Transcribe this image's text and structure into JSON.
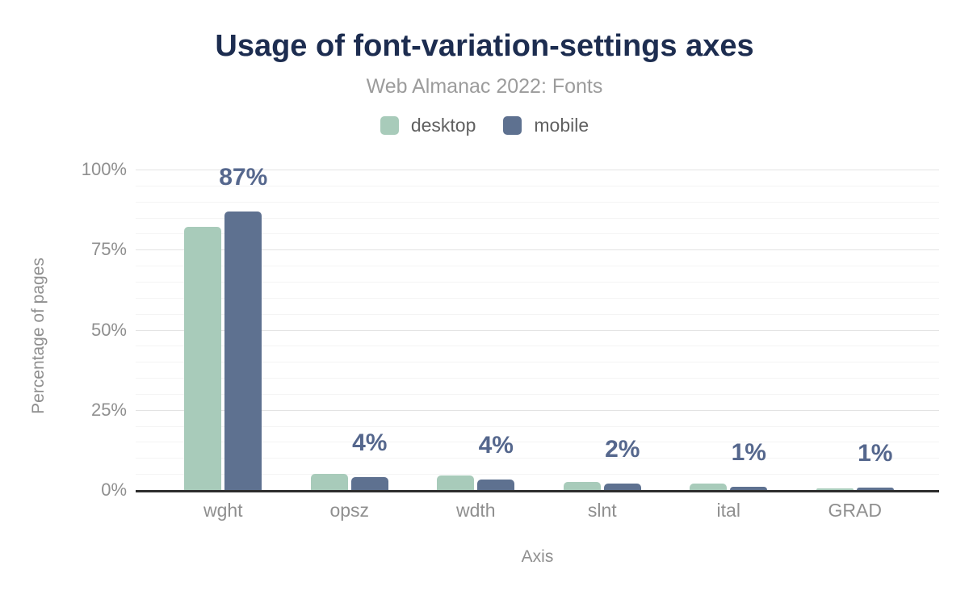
{
  "header": {
    "title": "Usage of font-variation-settings axes",
    "subtitle": "Web Almanac 2022: Fonts"
  },
  "legend": {
    "items": [
      {
        "label": "desktop",
        "color": "#a8cbba"
      },
      {
        "label": "mobile",
        "color": "#5e7190"
      }
    ]
  },
  "axes": {
    "x_title": "Axis",
    "y_title": "Percentage of pages"
  },
  "chart_data": {
    "type": "bar",
    "title": "Usage of font-variation-settings axes",
    "subtitle": "Web Almanac 2022: Fonts",
    "categories": [
      "wght",
      "opsz",
      "wdth",
      "slnt",
      "ital",
      "GRAD"
    ],
    "series": [
      {
        "name": "desktop",
        "color": "#a8cbba",
        "values": [
          82,
          5,
          4.5,
          2.4,
          1.9,
          0.6
        ]
      },
      {
        "name": "mobile",
        "color": "#5e7190",
        "values": [
          87,
          4,
          3.4,
          1.9,
          1.1,
          0.7
        ]
      }
    ],
    "data_labels": [
      "87%",
      "4%",
      "4%",
      "2%",
      "1%",
      "1%"
    ],
    "data_label_color": "#55678d",
    "xlabel": "Axis",
    "ylabel": "Percentage of pages",
    "ylim": [
      0,
      100
    ],
    "yticks": [
      0,
      25,
      50,
      75,
      100
    ],
    "ytick_labels": [
      "0%",
      "25%",
      "50%",
      "75%",
      "100%"
    ],
    "minor_grid_step": 5,
    "major_grid_step": 25,
    "grid": true,
    "legend_position": "top",
    "baseline_color": "#2d2d2d"
  }
}
